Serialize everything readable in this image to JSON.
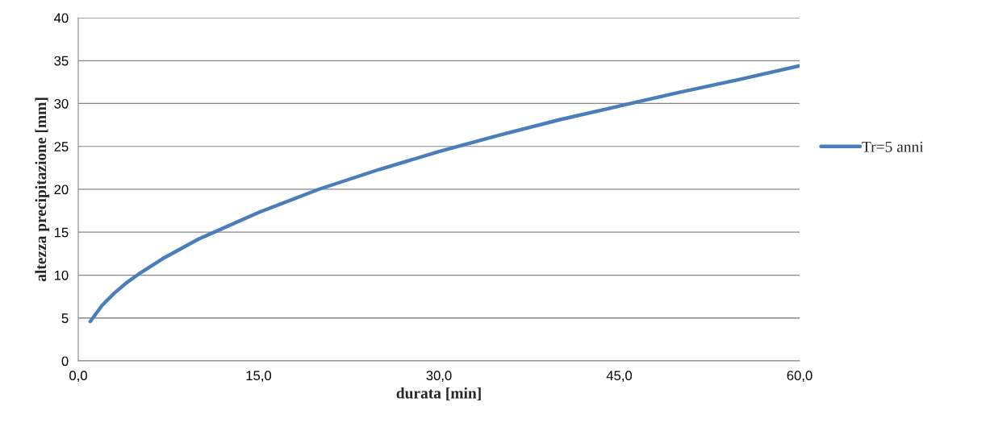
{
  "chart_data": {
    "type": "line",
    "xlabel": "durata [min]",
    "ylabel": "altezza precipitazione [mm]",
    "x": [
      1,
      2,
      3,
      4,
      5,
      7,
      10,
      15,
      20,
      25,
      30,
      35,
      40,
      45,
      50,
      55,
      60
    ],
    "series": [
      {
        "name": "Tr=5 anni",
        "color": "#4a7ebb",
        "values": [
          4.6,
          6.5,
          7.9,
          9.1,
          10.1,
          11.9,
          14.2,
          17.3,
          20.0,
          22.3,
          24.4,
          26.3,
          28.1,
          29.7,
          31.3,
          32.8,
          34.4
        ]
      }
    ],
    "xlim": [
      0,
      60
    ],
    "xticks": [
      {
        "value": 0,
        "label": "0,0"
      },
      {
        "value": 15,
        "label": "15,0"
      },
      {
        "value": 30,
        "label": "30,0"
      },
      {
        "value": 45,
        "label": "45,0"
      },
      {
        "value": 60,
        "label": "60,0"
      }
    ],
    "ylim": [
      0,
      40
    ],
    "yticks": [
      0,
      5,
      10,
      15,
      20,
      25,
      30,
      35,
      40
    ],
    "grid": "y",
    "legend": "right",
    "marker": "none",
    "line_style": "solid"
  }
}
